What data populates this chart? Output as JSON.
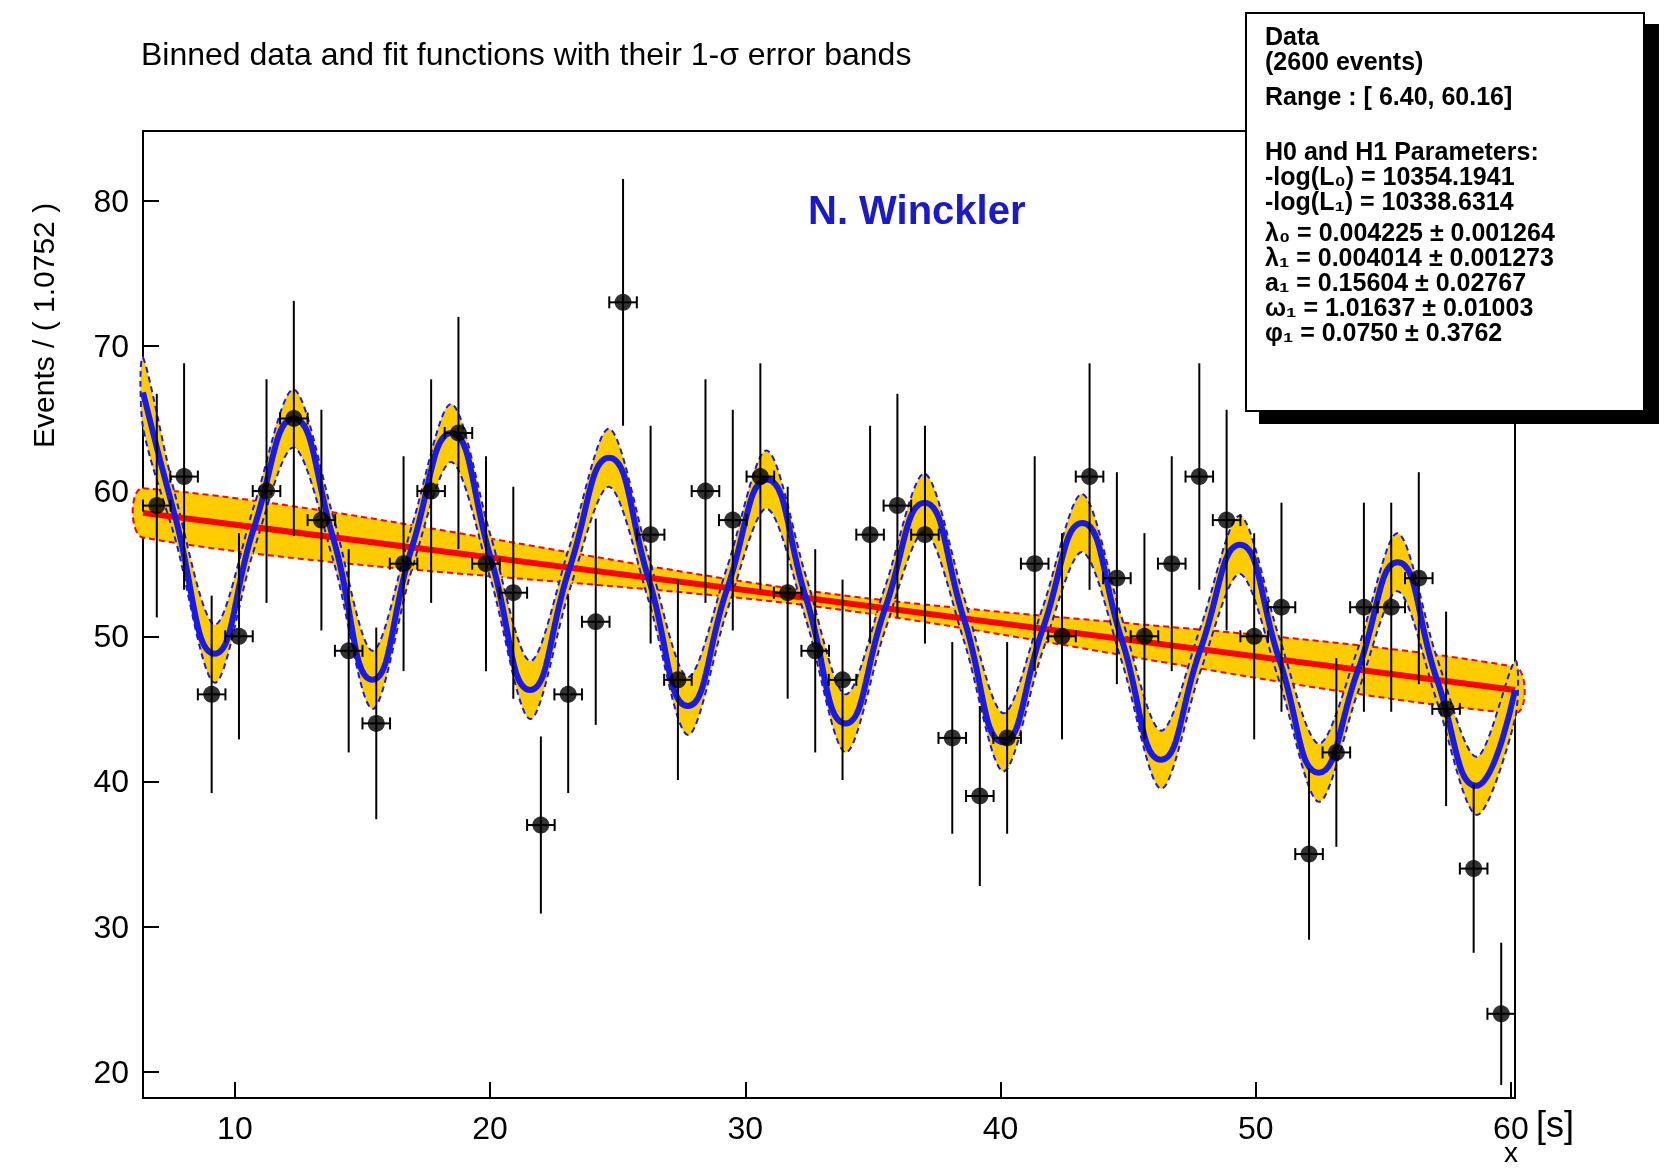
{
  "chart_data": {
    "type": "scatter",
    "title": "Binned data and fit functions with their 1-σ error bands",
    "xlabel": "x",
    "ylabel": "Events / ( 1.0752 )",
    "xlim": [
      6.4,
      60.16
    ],
    "ylim": [
      18.2,
      84.8
    ],
    "xticks": [
      10,
      20,
      30,
      40,
      50,
      60
    ],
    "yticks": [
      20,
      30,
      40,
      50,
      60,
      70,
      80
    ],
    "grid": false,
    "annotations": [
      "N. Winckler",
      "[s]",
      "Data",
      "(2600 events)",
      "Range : [ 6.40,  60.16]",
      "H0 and H1 Parameters:",
      "-log(L₀) =  10354.1941",
      "-log(L₁) =  10338.6314",
      "λ₀ =  0.004225 ± 0.001264",
      "λ₁ =  0.004014 ± 0.001273",
      "a₁ =  0.15604 ± 0.02767",
      "ω₁ =  1.01637 ± 0.01003",
      "φ₁ =  0.0750 ± 0.3762"
    ],
    "series": [
      {
        "type": "line",
        "color": "#ff0000",
        "x": [
          6.4,
          33.0,
          60.16
        ],
        "values": [
          58.5,
          52.5,
          46.3
        ],
        "lower": [
          56.8,
          52.0,
          44.7
        ],
        "upper": [
          60.2,
          53.0,
          47.9
        ]
      },
      {
        "type": "line",
        "color": "#1a1ae6",
        "x": [
          6.4,
          7.665,
          9.21,
          10.755,
          12.3,
          13.845,
          15.39,
          16.935,
          18.48,
          20.025,
          21.57,
          23.115,
          24.66,
          26.205,
          27.75,
          29.295,
          30.84,
          32.385,
          33.93,
          35.475,
          37.02,
          38.565,
          40.11,
          41.655,
          43.2,
          44.745,
          46.29,
          47.835,
          49.38,
          50.925,
          52.47,
          54.015,
          55.56,
          57.105,
          58.65,
          60.16
        ],
        "values": [
          66.8,
          58.2,
          48.8,
          57.5,
          65.0,
          56.8,
          47.0,
          56.1,
          64.0,
          55.4,
          46.3,
          54.7,
          62.3,
          54.0,
          45.2,
          53.3,
          60.8,
          52.6,
          44.0,
          51.9,
          59.2,
          51.2,
          42.7,
          50.5,
          57.8,
          49.8,
          41.5,
          49.1,
          56.3,
          48.4,
          40.6,
          47.7,
          55.1,
          47.0,
          39.7,
          46.3
        ],
        "lower": [
          64.4,
          56.7,
          46.8,
          56.0,
          63.0,
          55.3,
          45.0,
          54.6,
          62.0,
          53.9,
          44.3,
          53.2,
          60.3,
          52.5,
          43.2,
          51.8,
          58.8,
          51.1,
          42.0,
          50.4,
          57.2,
          49.7,
          40.7,
          49.0,
          55.8,
          48.3,
          39.5,
          47.6,
          54.3,
          46.9,
          38.6,
          46.2,
          53.1,
          45.5,
          37.7,
          44.3
        ],
        "upper": [
          69.2,
          59.7,
          50.8,
          59.0,
          67.0,
          58.3,
          49.0,
          57.6,
          66.0,
          56.9,
          48.3,
          56.2,
          64.3,
          55.5,
          47.2,
          54.8,
          62.8,
          54.1,
          46.0,
          53.4,
          61.2,
          52.7,
          44.7,
          52.0,
          59.8,
          51.3,
          43.5,
          50.6,
          58.3,
          49.9,
          42.6,
          49.2,
          57.1,
          48.5,
          41.7,
          48.3
        ]
      },
      {
        "color": "#000000",
        "marker": "circle",
        "x": [
          6.94,
          8.01,
          9.09,
          10.16,
          11.24,
          12.31,
          13.39,
          14.46,
          15.54,
          16.61,
          17.69,
          18.76,
          19.84,
          20.91,
          21.99,
          23.06,
          24.14,
          25.21,
          26.29,
          27.36,
          28.44,
          29.51,
          30.59,
          31.66,
          32.74,
          33.81,
          34.89,
          35.96,
          37.04,
          38.11,
          39.19,
          40.26,
          41.34,
          42.41,
          43.49,
          44.56,
          45.64,
          46.71,
          47.79,
          48.86,
          49.94,
          51.01,
          52.09,
          53.16,
          54.24,
          55.31,
          56.39,
          57.46,
          58.54,
          59.62
        ],
        "values": [
          59,
          61,
          46,
          50,
          60,
          65,
          58,
          49,
          44,
          55,
          60,
          64,
          55,
          53,
          37,
          46,
          51,
          73,
          57,
          47,
          60,
          58,
          61,
          53,
          49,
          47,
          57,
          59,
          57,
          43,
          39,
          43,
          55,
          50,
          61,
          54,
          50,
          55,
          61,
          58,
          50,
          52,
          35,
          42,
          52,
          52,
          54,
          45,
          34,
          24
        ],
        "errors": [
          7.7,
          7.8,
          6.8,
          7.1,
          7.7,
          8.1,
          7.6,
          7.0,
          6.6,
          7.4,
          7.7,
          8.0,
          7.4,
          7.3,
          6.1,
          6.8,
          7.1,
          8.5,
          7.5,
          6.9,
          7.7,
          7.6,
          7.8,
          7.3,
          7.0,
          6.9,
          7.5,
          7.7,
          7.5,
          6.6,
          6.2,
          6.6,
          7.4,
          7.1,
          7.8,
          7.3,
          7.1,
          7.4,
          7.8,
          7.6,
          7.1,
          7.2,
          5.9,
          6.5,
          7.2,
          7.2,
          7.3,
          6.7,
          5.8,
          4.9
        ],
        "xerrors": [
          0.54,
          0.54,
          0.54,
          0.54,
          0.54,
          0.54,
          0.54,
          0.54,
          0.54,
          0.54,
          0.54,
          0.54,
          0.54,
          0.54,
          0.54,
          0.54,
          0.54,
          0.54,
          0.54,
          0.54,
          0.54,
          0.54,
          0.54,
          0.54,
          0.54,
          0.54,
          0.54,
          0.54,
          0.54,
          0.54,
          0.54,
          0.54,
          0.54,
          0.54,
          0.54,
          0.54,
          0.54,
          0.54,
          0.54,
          0.54,
          0.54,
          0.54,
          0.54,
          0.54,
          0.54,
          0.54,
          0.54,
          0.54,
          0.54,
          0.54
        ]
      }
    ]
  }
}
